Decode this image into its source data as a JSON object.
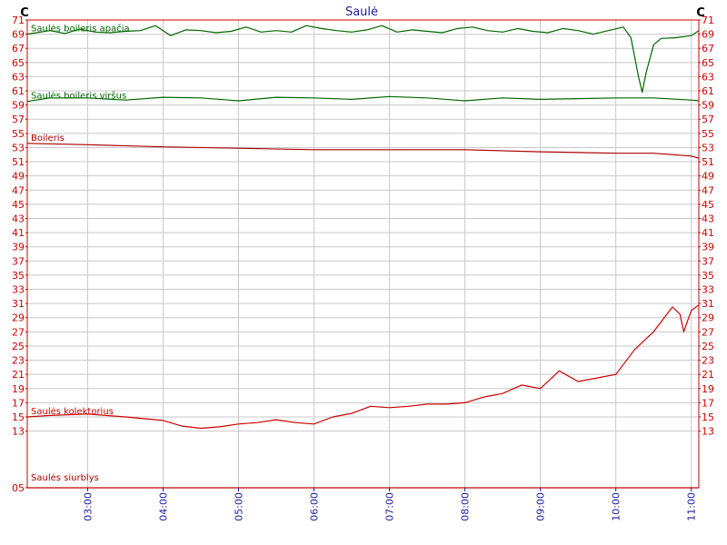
{
  "chart_data": {
    "type": "line",
    "title": "Saulė",
    "ylabel_left": "C",
    "ylabel_right": "C",
    "ylim": [
      5,
      71
    ],
    "y_ticks_left": [
      "71",
      "69",
      "67",
      "65",
      "63",
      "61",
      "59",
      "57",
      "55",
      "53",
      "51",
      "49",
      "47",
      "45",
      "43",
      "41",
      "39",
      "37",
      "35",
      "33",
      "31",
      "29",
      "27",
      "25",
      "23",
      "21",
      "19",
      "17",
      "15",
      "13",
      "05"
    ],
    "y_ticks_right": [
      "71",
      "69",
      "67",
      "65",
      "63",
      "61",
      "59",
      "57",
      "55",
      "53",
      "51",
      "49",
      "47",
      "45",
      "43",
      "41",
      "39",
      "37",
      "35",
      "33",
      "31",
      "29",
      "27",
      "25",
      "23",
      "21",
      "19",
      "17",
      "15",
      "13"
    ],
    "x_range_hours": [
      2.2,
      11.1
    ],
    "x_ticks": [
      "03:00",
      "04:00",
      "05:00",
      "06:00",
      "07:00",
      "08:00",
      "09:00",
      "10:00",
      "11:00"
    ],
    "grid": true,
    "series": [
      {
        "name": "Saulės boileris apačia",
        "color": "#006600",
        "x": [
          "02:12",
          "02:30",
          "02:42",
          "02:54",
          "03:06",
          "03:18",
          "03:30",
          "03:42",
          "03:54",
          "04:06",
          "04:18",
          "04:30",
          "04:42",
          "04:54",
          "05:06",
          "05:18",
          "05:30",
          "05:42",
          "05:54",
          "06:06",
          "06:18",
          "06:30",
          "06:42",
          "06:54",
          "07:06",
          "07:18",
          "07:30",
          "07:42",
          "07:54",
          "08:06",
          "08:18",
          "08:30",
          "08:42",
          "08:54",
          "09:06",
          "09:18",
          "09:30",
          "09:42",
          "09:54",
          "10:06",
          "10:12",
          "10:18",
          "10:21",
          "10:24",
          "10:30",
          "10:36",
          "10:48",
          "11:00",
          "11:06"
        ],
        "values": [
          69.0,
          69.5,
          69.1,
          69.7,
          69.3,
          69.2,
          69.4,
          69.5,
          70.2,
          68.8,
          69.6,
          69.5,
          69.2,
          69.4,
          70.0,
          69.3,
          69.5,
          69.3,
          70.2,
          69.8,
          69.5,
          69.3,
          69.6,
          70.2,
          69.3,
          69.6,
          69.4,
          69.2,
          69.8,
          70.0,
          69.5,
          69.3,
          69.8,
          69.4,
          69.2,
          69.8,
          69.5,
          69.0,
          69.5,
          70.0,
          68.5,
          63.0,
          60.8,
          63.5,
          67.5,
          68.4,
          68.5,
          68.8,
          69.5
        ]
      },
      {
        "name": "Saulės boileris viršus",
        "color": "#006600",
        "x": [
          "02:12",
          "02:30",
          "03:00",
          "03:30",
          "04:00",
          "04:30",
          "05:00",
          "05:30",
          "06:00",
          "06:30",
          "07:00",
          "07:30",
          "08:00",
          "08:30",
          "09:00",
          "09:30",
          "10:00",
          "10:30",
          "11:00",
          "11:06"
        ],
        "values": [
          59.5,
          60.0,
          60.0,
          59.7,
          60.1,
          60.0,
          59.6,
          60.1,
          60.0,
          59.8,
          60.2,
          60.0,
          59.6,
          60.0,
          59.8,
          59.9,
          60.0,
          60.0,
          59.7,
          59.6
        ]
      },
      {
        "name": "Boileris",
        "color": "#aa0000",
        "x": [
          "02:12",
          "03:00",
          "04:00",
          "05:00",
          "06:00",
          "07:00",
          "08:00",
          "09:00",
          "10:00",
          "10:30",
          "11:00",
          "11:06"
        ],
        "values": [
          53.6,
          53.4,
          53.1,
          52.9,
          52.7,
          52.7,
          52.7,
          52.4,
          52.2,
          52.2,
          51.8,
          51.5
        ]
      },
      {
        "name": "Saulės kolektorius",
        "color": "#cc0000",
        "x": [
          "02:12",
          "02:30",
          "03:00",
          "03:30",
          "04:00",
          "04:15",
          "04:30",
          "04:45",
          "05:00",
          "05:15",
          "05:30",
          "05:45",
          "06:00",
          "06:15",
          "06:30",
          "06:45",
          "07:00",
          "07:15",
          "07:30",
          "07:45",
          "08:00",
          "08:15",
          "08:30",
          "08:45",
          "09:00",
          "09:15",
          "09:30",
          "09:45",
          "10:00",
          "10:15",
          "10:30",
          "10:45",
          "10:51",
          "10:54",
          "10:57",
          "11:00",
          "11:06"
        ],
        "values": [
          15.0,
          15.2,
          15.4,
          15.0,
          14.5,
          13.7,
          13.4,
          13.6,
          14.0,
          14.2,
          14.6,
          14.2,
          14.0,
          15.0,
          15.5,
          16.5,
          16.3,
          16.5,
          16.8,
          16.8,
          17.0,
          17.8,
          18.3,
          19.5,
          19.0,
          21.5,
          20.0,
          20.5,
          21.0,
          24.5,
          27.0,
          30.5,
          29.5,
          27.0,
          28.5,
          30.0,
          30.8
        ]
      },
      {
        "name": "Saulės siurblys",
        "color": "#aa0000",
        "x": [
          "02:12",
          "11:06"
        ],
        "values": [
          5.0,
          5.0
        ]
      }
    ]
  }
}
